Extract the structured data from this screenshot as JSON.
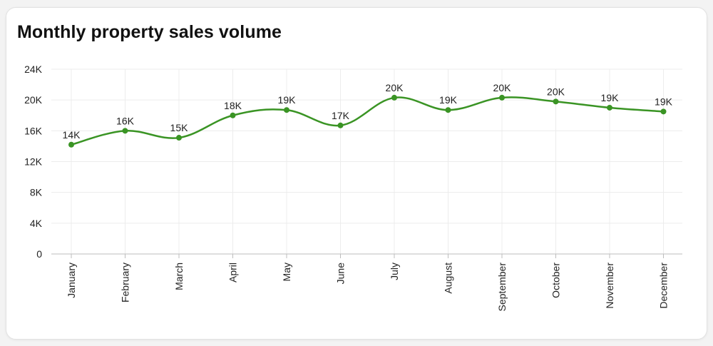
{
  "chart_data": {
    "type": "line",
    "title": "Monthly property sales volume",
    "categories": [
      "January",
      "February",
      "March",
      "April",
      "May",
      "June",
      "July",
      "August",
      "September",
      "October",
      "November",
      "December"
    ],
    "values": [
      14200,
      16000,
      15100,
      18000,
      18700,
      16700,
      20300,
      18700,
      20300,
      19800,
      19000,
      18500
    ],
    "data_labels": [
      "14K",
      "16K",
      "15K",
      "18K",
      "19K",
      "17K",
      "20K",
      "19K",
      "20K",
      "20K",
      "19K",
      "19K"
    ],
    "ylim": [
      0,
      24000
    ],
    "y_ticks": [
      {
        "value": 0,
        "label": "0"
      },
      {
        "value": 4000,
        "label": "4K"
      },
      {
        "value": 8000,
        "label": "8K"
      },
      {
        "value": 12000,
        "label": "12K"
      },
      {
        "value": 16000,
        "label": "16K"
      },
      {
        "value": 20000,
        "label": "20K"
      },
      {
        "value": 24000,
        "label": "24K"
      }
    ],
    "xlabel": "",
    "ylabel": "",
    "grid": true,
    "curve": "smooth",
    "colors": {
      "line": "#3a9424",
      "point": "#3a9424",
      "grid": "#ececec",
      "axis": "#bdbdbd"
    }
  }
}
